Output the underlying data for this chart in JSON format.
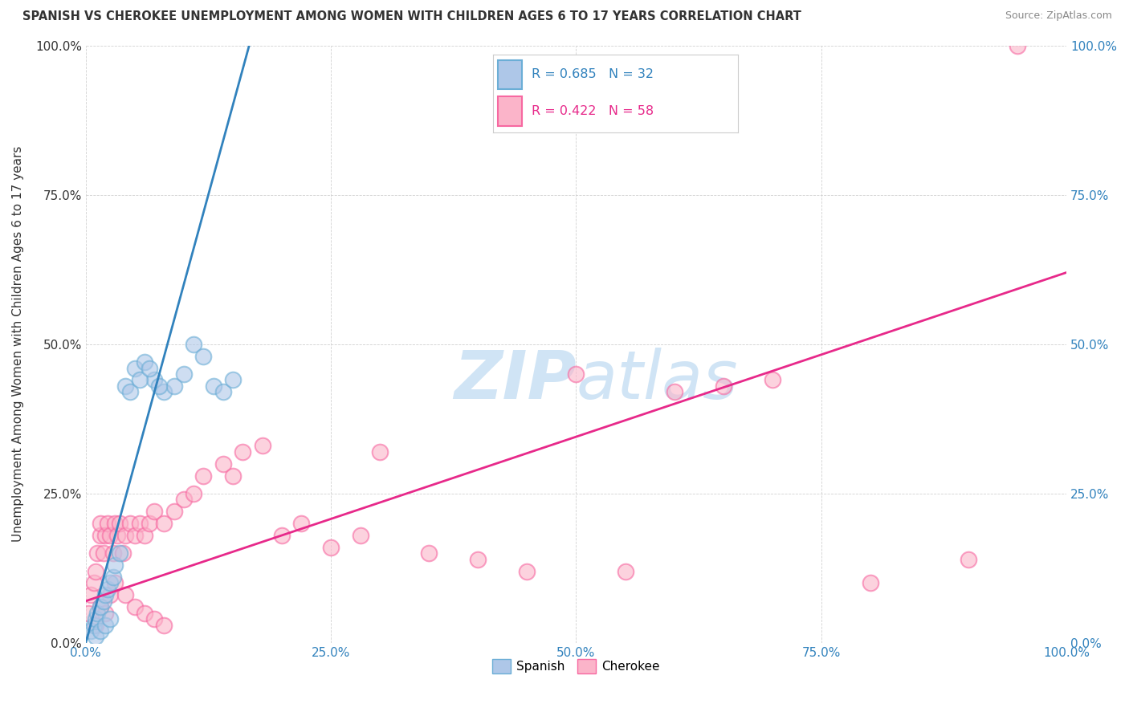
{
  "title": "SPANISH VS CHEROKEE UNEMPLOYMENT AMONG WOMEN WITH CHILDREN AGES 6 TO 17 YEARS CORRELATION CHART",
  "source": "Source: ZipAtlas.com",
  "ylabel": "Unemployment Among Women with Children Ages 6 to 17 years",
  "xlim": [
    0,
    100
  ],
  "ylim": [
    0,
    100
  ],
  "xtick_labels": [
    "0.0%",
    "25.0%",
    "50.0%",
    "75.0%",
    "100.0%"
  ],
  "xtick_vals": [
    0,
    25,
    50,
    75,
    100
  ],
  "ytick_labels": [
    "0.0%",
    "25.0%",
    "50.0%",
    "75.0%",
    "100.0%"
  ],
  "ytick_vals": [
    0,
    25,
    50,
    75,
    100
  ],
  "spanish_face_color": "#aec7e8",
  "spanish_edge_color": "#6baed6",
  "cherokee_face_color": "#fbb4c9",
  "cherokee_edge_color": "#f768a1",
  "regression_spanish_color": "#3182bd",
  "regression_cherokee_color": "#e7298a",
  "R_spanish": 0.685,
  "N_spanish": 32,
  "R_cherokee": 0.422,
  "N_cherokee": 58,
  "watermark_zip": "ZIP",
  "watermark_atlas": "atlas",
  "watermark_color": "#d0e4f5",
  "legend_spanish": "Spanish",
  "legend_cherokee": "Cherokee",
  "sp_x": [
    0.5,
    0.8,
    1.0,
    1.2,
    1.5,
    1.8,
    2.0,
    2.2,
    2.5,
    2.8,
    3.0,
    4.0,
    5.0,
    6.0,
    7.0,
    8.0,
    9.0,
    10.0,
    11.0,
    12.0,
    13.0,
    14.0,
    15.0,
    3.5,
    4.5,
    5.5,
    6.5,
    7.5,
    1.0,
    1.5,
    2.0,
    2.5
  ],
  "sp_y": [
    2.0,
    3.0,
    4.0,
    5.0,
    6.0,
    7.0,
    8.0,
    9.0,
    10.0,
    11.0,
    13.0,
    43.0,
    46.0,
    47.0,
    44.0,
    42.0,
    43.0,
    45.0,
    50.0,
    48.0,
    43.0,
    42.0,
    44.0,
    15.0,
    42.0,
    44.0,
    46.0,
    43.0,
    1.0,
    2.0,
    3.0,
    4.0
  ],
  "ch_x": [
    0.3,
    0.5,
    0.8,
    1.0,
    1.2,
    1.5,
    1.5,
    1.8,
    2.0,
    2.2,
    2.5,
    2.8,
    3.0,
    3.2,
    3.5,
    3.8,
    4.0,
    4.5,
    5.0,
    5.5,
    6.0,
    6.5,
    7.0,
    8.0,
    9.0,
    10.0,
    11.0,
    12.0,
    14.0,
    15.0,
    16.0,
    18.0,
    20.0,
    22.0,
    25.0,
    28.0,
    30.0,
    35.0,
    40.0,
    45.0,
    50.0,
    55.0,
    60.0,
    65.0,
    70.0,
    80.0,
    90.0,
    95.0,
    1.0,
    1.5,
    2.0,
    2.5,
    3.0,
    4.0,
    5.0,
    6.0,
    7.0,
    8.0
  ],
  "ch_y": [
    5.0,
    8.0,
    10.0,
    12.0,
    15.0,
    18.0,
    20.0,
    15.0,
    18.0,
    20.0,
    18.0,
    15.0,
    20.0,
    18.0,
    20.0,
    15.0,
    18.0,
    20.0,
    18.0,
    20.0,
    18.0,
    20.0,
    22.0,
    20.0,
    22.0,
    24.0,
    25.0,
    28.0,
    30.0,
    28.0,
    32.0,
    33.0,
    18.0,
    20.0,
    16.0,
    18.0,
    32.0,
    15.0,
    14.0,
    12.0,
    45.0,
    12.0,
    42.0,
    43.0,
    44.0,
    10.0,
    14.0,
    100.0,
    3.0,
    6.0,
    5.0,
    8.0,
    10.0,
    8.0,
    6.0,
    5.0,
    4.0,
    3.0
  ]
}
